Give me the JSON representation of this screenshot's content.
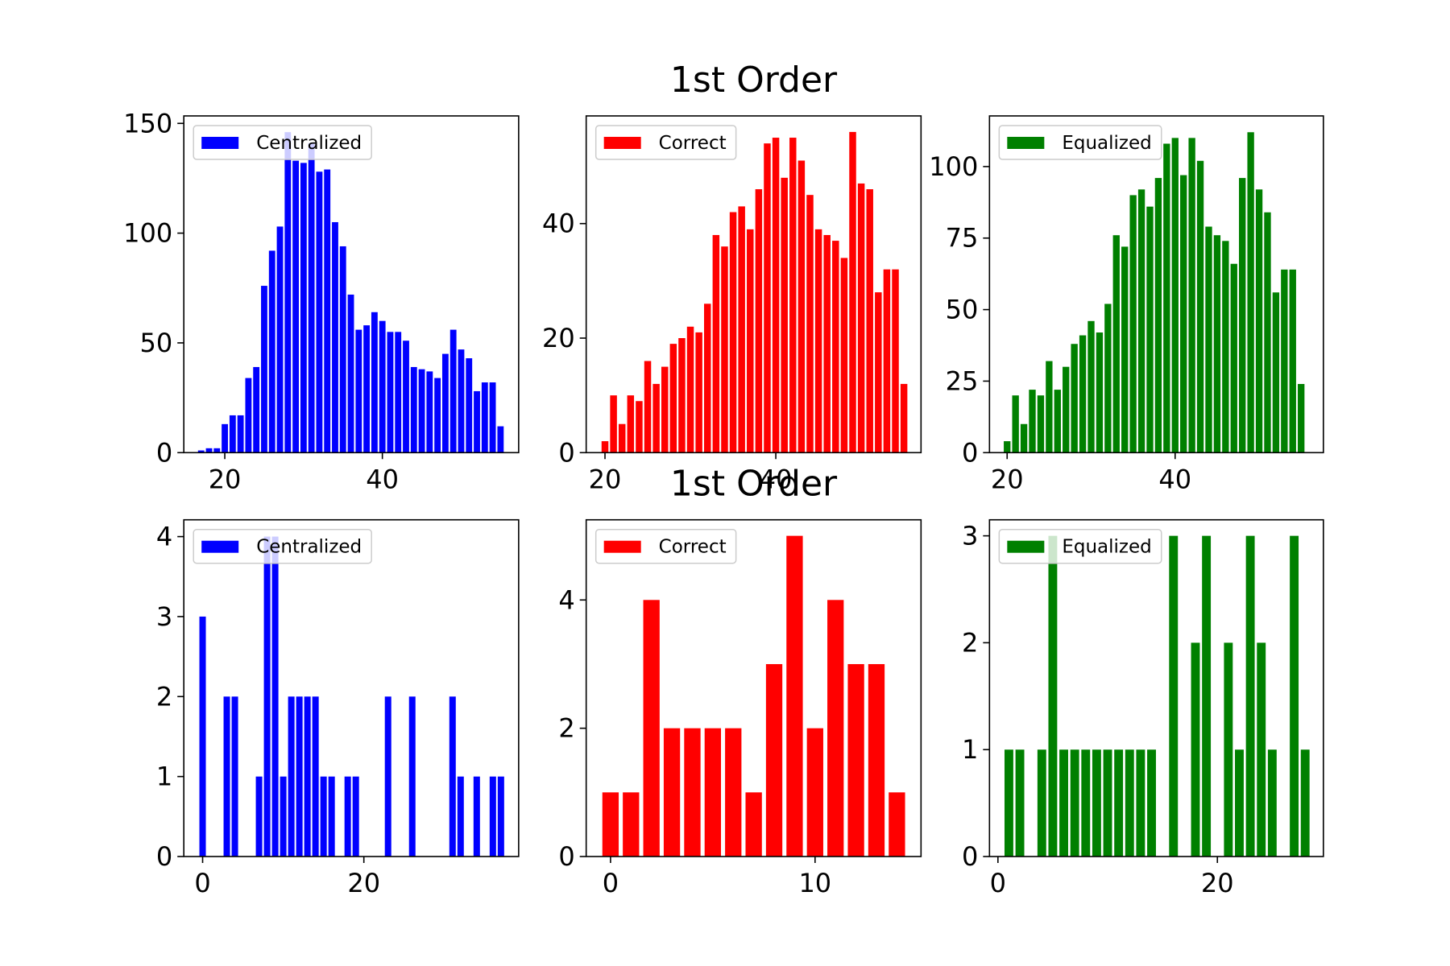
{
  "chart_data": [
    {
      "type": "bar",
      "legend": "upper left",
      "x": [
        17,
        18,
        19,
        20,
        21,
        22,
        23,
        24,
        25,
        26,
        27,
        28,
        29,
        30,
        31,
        32,
        33,
        34,
        35,
        36,
        37,
        38,
        39,
        40,
        41,
        42,
        43,
        44,
        45,
        46,
        47,
        48,
        49,
        50,
        51,
        52,
        53,
        54,
        55
      ],
      "series": [
        {
          "name": "Centralized",
          "color": "#0000ff",
          "values": [
            1,
            2,
            2,
            13,
            17,
            17,
            34,
            39,
            76,
            92,
            103,
            146,
            133,
            132,
            141,
            128,
            129,
            105,
            94,
            72,
            56,
            58,
            64,
            60,
            55,
            55,
            51,
            39,
            38,
            37,
            34,
            45,
            56,
            47,
            43,
            28,
            32,
            32,
            12
          ]
        }
      ],
      "xlim": [
        14.8,
        57.3
      ],
      "ylim": [
        0,
        153.4
      ],
      "xticks": [
        20,
        40
      ],
      "yticks": [
        0,
        50,
        100,
        150
      ]
    },
    {
      "type": "bar",
      "title": "1st Order",
      "legend": "upper left",
      "x": [
        20,
        21,
        22,
        23,
        24,
        25,
        26,
        27,
        28,
        29,
        30,
        31,
        32,
        33,
        34,
        35,
        36,
        37,
        38,
        39,
        40,
        41,
        42,
        43,
        44,
        45,
        46,
        47,
        48,
        49,
        50,
        51,
        52,
        53,
        54,
        55
      ],
      "series": [
        {
          "name": "Correct",
          "color": "#ff0000",
          "values": [
            2,
            10,
            5,
            10,
            9,
            16,
            12,
            15,
            19,
            20,
            22,
            21,
            26,
            38,
            36,
            42,
            43,
            39,
            46,
            54,
            55,
            48,
            55,
            51,
            45,
            39,
            38,
            37,
            34,
            56,
            47,
            46,
            28,
            32,
            32,
            12
          ]
        }
      ],
      "xlim": [
        17.8,
        57.0
      ],
      "ylim": [
        0,
        58.8
      ],
      "xticks": [
        20,
        40
      ],
      "yticks": [
        0,
        20,
        40
      ]
    },
    {
      "type": "bar",
      "legend": "upper left",
      "x": [
        20,
        21,
        22,
        23,
        24,
        25,
        26,
        27,
        28,
        29,
        30,
        31,
        32,
        33,
        34,
        35,
        36,
        37,
        38,
        39,
        40,
        41,
        42,
        43,
        44,
        45,
        46,
        47,
        48,
        49,
        50,
        51,
        52,
        53,
        54,
        55
      ],
      "series": [
        {
          "name": "Equalized",
          "color": "#008000",
          "values": [
            4,
            20,
            10,
            22,
            20,
            32,
            22,
            30,
            38,
            41,
            46,
            42,
            52,
            76,
            72,
            90,
            92,
            86,
            96,
            108,
            110,
            97,
            110,
            102,
            79,
            76,
            74,
            66,
            96,
            112,
            92,
            84,
            56,
            64,
            64,
            24
          ]
        }
      ],
      "xlim": [
        17.9,
        57.65
      ],
      "ylim": [
        0,
        117.7
      ],
      "xticks": [
        20,
        40
      ],
      "yticks": [
        0,
        25,
        50,
        75,
        100
      ]
    },
    {
      "type": "bar",
      "legend": "upper left",
      "x": [
        0,
        3,
        4,
        7,
        8,
        9,
        10,
        11,
        12,
        13,
        14,
        15,
        16,
        18,
        19,
        23,
        26,
        31,
        32,
        34,
        36,
        37
      ],
      "series": [
        {
          "name": "Centralized",
          "color": "#0000ff",
          "values": [
            3,
            2,
            2,
            1,
            4,
            4,
            1,
            2,
            2,
            2,
            2,
            1,
            1,
            1,
            1,
            2,
            2,
            2,
            1,
            1,
            1,
            1
          ]
        }
      ],
      "xlim": [
        -2.33,
        39.2
      ],
      "ylim": [
        0,
        4.21
      ],
      "xticks": [
        0,
        20
      ],
      "yticks": [
        0,
        1,
        2,
        3,
        4
      ]
    },
    {
      "type": "bar",
      "title": "1st Order",
      "legend": "upper left",
      "x": [
        0,
        1,
        2,
        3,
        4,
        5,
        6,
        7,
        8,
        9,
        10,
        11,
        12,
        13,
        14
      ],
      "series": [
        {
          "name": "Correct",
          "color": "#ff0000",
          "values": [
            1,
            1,
            4,
            2,
            2,
            2,
            2,
            1,
            3,
            5,
            2,
            4,
            3,
            3,
            1
          ]
        }
      ],
      "xlim": [
        -1.19,
        15.18
      ],
      "ylim": [
        0,
        5.25
      ],
      "xticks": [
        0,
        10
      ],
      "yticks": [
        0,
        2,
        4
      ]
    },
    {
      "type": "bar",
      "legend": "upper left",
      "x": [
        1,
        2,
        4,
        5,
        6,
        7,
        8,
        9,
        10,
        11,
        12,
        13,
        14,
        16,
        18,
        19,
        21,
        22,
        23,
        24,
        25,
        27,
        28
      ],
      "series": [
        {
          "name": "Equalized",
          "color": "#008000",
          "values": [
            1,
            1,
            1,
            3,
            1,
            1,
            1,
            1,
            1,
            1,
            1,
            1,
            1,
            3,
            2,
            3,
            2,
            1,
            3,
            2,
            1,
            3,
            1
          ]
        }
      ],
      "xlim": [
        -0.77,
        29.66
      ],
      "ylim": [
        0,
        3.15
      ],
      "xticks": [
        0,
        20
      ],
      "yticks": [
        0,
        1,
        2,
        3
      ]
    }
  ]
}
